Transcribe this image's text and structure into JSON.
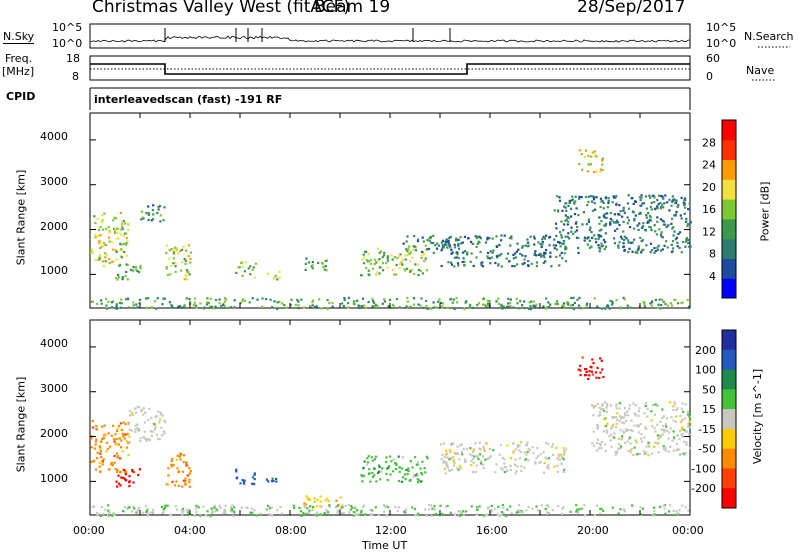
{
  "header": {
    "station": "Christmas Valley West (fitACF)",
    "beam": "Beam 19",
    "date": "28/Sep/2017"
  },
  "noise_panel": {
    "left_label": "N.Sky",
    "right_label": "N.Search",
    "left_ticks": [
      "10^5",
      "10^0"
    ],
    "right_ticks": [
      "10^5",
      "10^0"
    ]
  },
  "freq_panel": {
    "left_label_1": "Freq.",
    "left_label_2": "[MHz]",
    "right_label": "Nave",
    "left_ticks": [
      "18",
      "8"
    ],
    "right_ticks": [
      "60",
      "0"
    ]
  },
  "cpid_panel": {
    "label": "CPID",
    "text": "interleavedscan (fast) -191 RF"
  },
  "chart_data": [
    {
      "type": "heatmap",
      "name": "power",
      "ylabel": "Slant Range [km]",
      "y_ticks": [
        "1000",
        "2000",
        "3000",
        "4000"
      ],
      "ylim": [
        250,
        4600
      ],
      "colorbar": {
        "label": "Power [dB]",
        "ticks": [
          "4",
          "8",
          "12",
          "16",
          "20",
          "24",
          "28"
        ],
        "range": [
          0,
          32
        ],
        "colors": [
          "#0000ff",
          "#1c4ba0",
          "#2e7d6e",
          "#3d9a4a",
          "#7ec832",
          "#f0e040",
          "#ff9a00",
          "#ff3000",
          "#ff0000"
        ]
      },
      "regions": [
        {
          "t": [
            0.0,
            1.5
          ],
          "r": [
            1200,
            2400
          ],
          "p": 18
        },
        {
          "t": [
            1.0,
            2.0
          ],
          "r": [
            900,
            1300
          ],
          "p": 12
        },
        {
          "t": [
            2.0,
            3.0
          ],
          "r": [
            2200,
            2600
          ],
          "p": 10
        },
        {
          "t": [
            3.0,
            4.0
          ],
          "r": [
            900,
            1700
          ],
          "p": 18
        },
        {
          "t": [
            5.8,
            6.6
          ],
          "r": [
            950,
            1300
          ],
          "p": 14
        },
        {
          "t": [
            7.0,
            7.6
          ],
          "r": [
            900,
            1100
          ],
          "p": 16
        },
        {
          "t": [
            8.5,
            9.5
          ],
          "r": [
            1100,
            1400
          ],
          "p": 12
        },
        {
          "t": [
            10.8,
            13.5
          ],
          "r": [
            1000,
            1600
          ],
          "p": 16
        },
        {
          "t": [
            12.5,
            14.5
          ],
          "r": [
            1500,
            1900
          ],
          "p": 10
        },
        {
          "t": [
            14.0,
            19.0
          ],
          "r": [
            1200,
            1900
          ],
          "p": 8
        },
        {
          "t": [
            19.5,
            20.5
          ],
          "r": [
            3300,
            3800
          ],
          "p": 20
        },
        {
          "t": [
            18.5,
            24.0
          ],
          "r": [
            1500,
            2800
          ],
          "p": 8
        },
        {
          "t": [
            0.0,
            24.0
          ],
          "r": [
            250,
            500
          ],
          "p": 12
        }
      ]
    },
    {
      "type": "heatmap",
      "name": "velocity",
      "ylabel": "Slant Range [km]",
      "xlabel": "Time UT",
      "x_ticks": [
        "00:00",
        "04:00",
        "08:00",
        "12:00",
        "16:00",
        "20:00",
        "00:00"
      ],
      "xlim": [
        0,
        24
      ],
      "y_ticks": [
        "1000",
        "2000",
        "3000",
        "4000"
      ],
      "ylim": [
        250,
        4600
      ],
      "colorbar": {
        "label": "Velocity [m s^-1]",
        "ticks": [
          "200",
          "100",
          "50",
          "15",
          "-15",
          "-50",
          "-100",
          "-200"
        ],
        "colors": [
          "#1f2fa0",
          "#2258c0",
          "#1e8a4c",
          "#43c23a",
          "#c8c8c0",
          "#ffcc00",
          "#ff8a00",
          "#ff4000",
          "#ff0000"
        ]
      },
      "regions": [
        {
          "t": [
            0.0,
            1.5
          ],
          "r": [
            1200,
            2400
          ],
          "v": -100
        },
        {
          "t": [
            1.0,
            2.0
          ],
          "r": [
            900,
            1300
          ],
          "v": -200
        },
        {
          "t": [
            1.5,
            3.0
          ],
          "r": [
            1900,
            2700
          ],
          "v": 0
        },
        {
          "t": [
            3.0,
            4.0
          ],
          "r": [
            900,
            1700
          ],
          "v": -100
        },
        {
          "t": [
            5.8,
            6.6
          ],
          "r": [
            950,
            1300
          ],
          "v": 150
        },
        {
          "t": [
            7.0,
            7.6
          ],
          "r": [
            900,
            1100
          ],
          "v": 150
        },
        {
          "t": [
            8.5,
            10.0
          ],
          "r": [
            400,
            700
          ],
          "v": -60
        },
        {
          "t": [
            10.8,
            13.5
          ],
          "r": [
            1000,
            1600
          ],
          "v": 50
        },
        {
          "t": [
            14.0,
            19.0
          ],
          "r": [
            1200,
            1900
          ],
          "v": 0
        },
        {
          "t": [
            19.5,
            20.5
          ],
          "r": [
            3300,
            3800
          ],
          "v": -200
        },
        {
          "t": [
            20.0,
            24.0
          ],
          "r": [
            1600,
            2800
          ],
          "v": 0
        },
        {
          "t": [
            0.0,
            24.0
          ],
          "r": [
            250,
            500
          ],
          "v": 20
        }
      ]
    }
  ]
}
